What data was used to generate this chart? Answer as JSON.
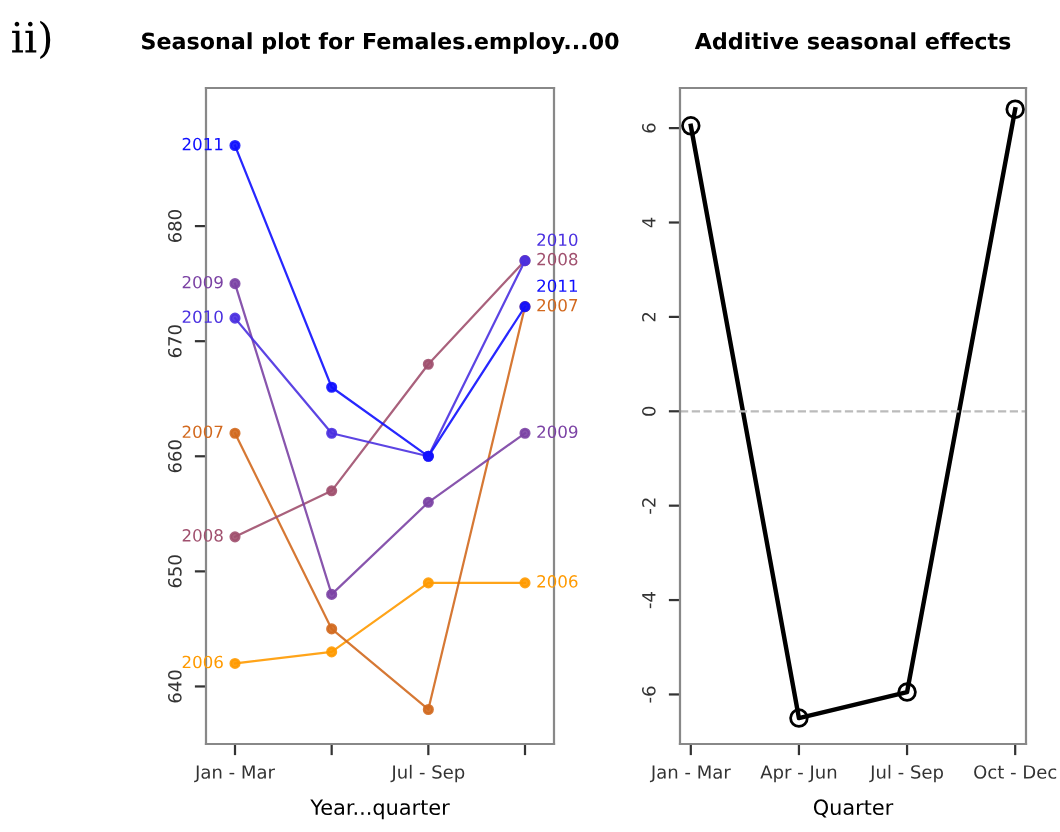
{
  "chart_data": [
    {
      "type": "line",
      "title": "Seasonal plot for Females.employ...00",
      "xlabel": "Year...quarter",
      "annotations": [
        "ii)"
      ],
      "categories": [
        "Jan - Mar",
        null,
        "Jul - Sep",
        null
      ],
      "ylim": [
        635,
        692
      ],
      "yticks": [
        640,
        650,
        660,
        670,
        680
      ],
      "marker": "circle",
      "grid": false,
      "legend": false,
      "series": [
        {
          "name": "2006",
          "color": "#ff9a00",
          "values": [
            642,
            643,
            649,
            649
          ]
        },
        {
          "name": "2007",
          "color": "#d2691e",
          "values": [
            662,
            645,
            638,
            673
          ]
        },
        {
          "name": "2008",
          "color": "#a0506e",
          "values": [
            653,
            657,
            668,
            677
          ]
        },
        {
          "name": "2009",
          "color": "#7b42a4",
          "values": [
            675,
            648,
            656,
            662
          ]
        },
        {
          "name": "2010",
          "color": "#4a30e0",
          "values": [
            672,
            662,
            660,
            677
          ]
        },
        {
          "name": "2011",
          "color": "#1010ff",
          "values": [
            687,
            666,
            660,
            673
          ]
        }
      ]
    },
    {
      "type": "line",
      "title": "Additive seasonal effects",
      "xlabel": "Quarter",
      "categories": [
        "Jan - Mar",
        "Apr - Jun",
        "Jul - Sep",
        "Oct - Dec"
      ],
      "ylim": [
        -7.05,
        6.85
      ],
      "yticks": [
        -6,
        -4,
        -2,
        0,
        2,
        4,
        6
      ],
      "marker": "circle",
      "grid": false,
      "legend": false,
      "ref_lines": [
        {
          "axis": "y",
          "value": 0,
          "color": "#bbbbbb",
          "line_style": "dashed"
        }
      ],
      "series": [
        {
          "color": "#000000",
          "values": [
            6.05,
            -6.5,
            -5.95,
            6.4
          ]
        }
      ]
    }
  ]
}
